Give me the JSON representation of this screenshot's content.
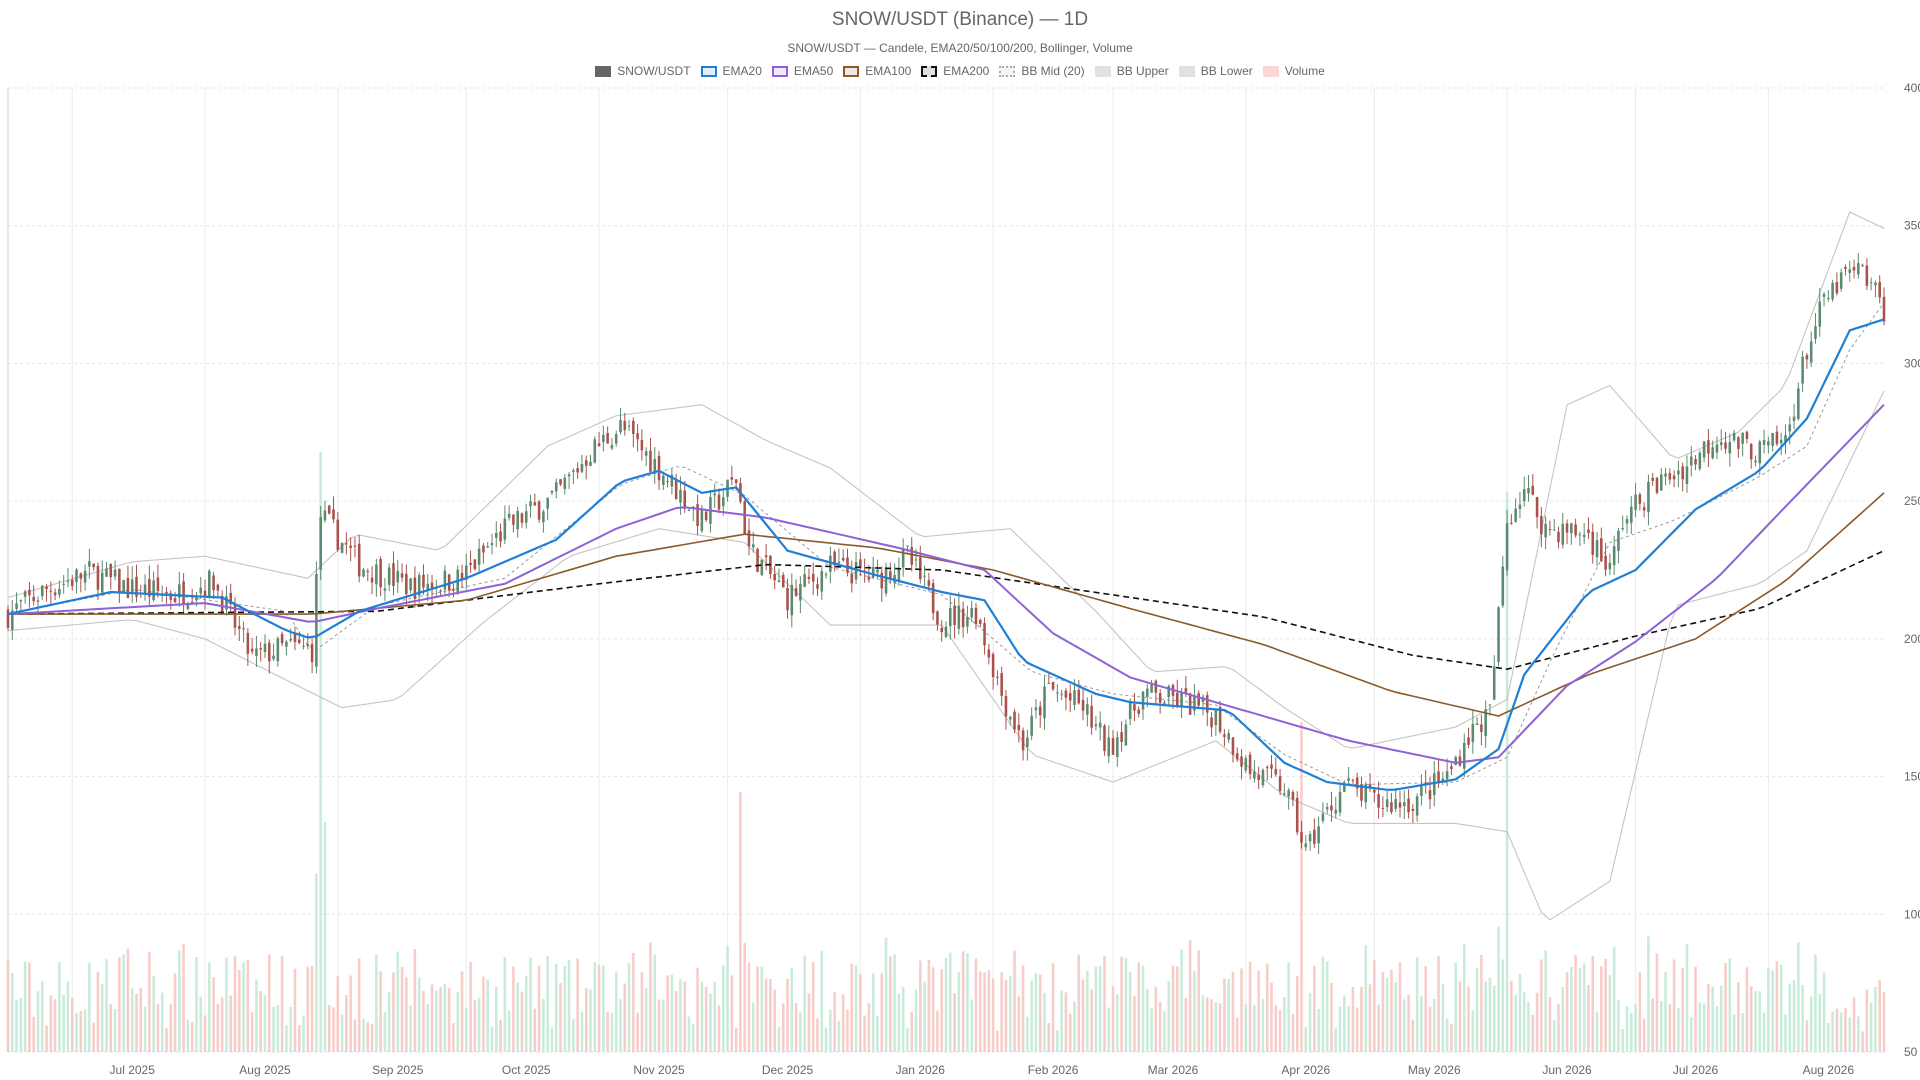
{
  "chart_data": {
    "type": "candlestick",
    "title": "SNOW/USDT (Binance) — 1D",
    "subtitle": "SNOW/USDT — Candele, EMA20/50/100/200, Bollinger, Volume",
    "legend": [
      {
        "label": "SNOW/USDT",
        "color": "#666666",
        "style": "fill"
      },
      {
        "label": "EMA20",
        "color": "#1f7fd6",
        "style": "line"
      },
      {
        "label": "EMA50",
        "color": "#8e62d6",
        "style": "line"
      },
      {
        "label": "EMA100",
        "color": "#8a5a2b",
        "style": "line"
      },
      {
        "label": "EMA200",
        "color": "#111111",
        "style": "dashed"
      },
      {
        "label": "BB Mid (20)",
        "color": "#aaaaaa",
        "style": "dotted"
      },
      {
        "label": "BB Upper",
        "color": "#c8c8c8",
        "style": "fill"
      },
      {
        "label": "BB Lower",
        "color": "#c8c8c8",
        "style": "fill"
      },
      {
        "label": "Volume",
        "color": "#f4b6b0",
        "style": "fill"
      }
    ],
    "x_ticks": [
      "Jul 2025",
      "Aug 2025",
      "Sep 2025",
      "Oct 2025",
      "Nov 2025",
      "Dec 2025",
      "Jan 2026",
      "Feb 2026",
      "Mar 2026",
      "Apr 2026",
      "May 2026",
      "Jun 2026",
      "Jul 2026",
      "Aug 2026"
    ],
    "y_ticks": [
      50,
      100,
      150,
      200,
      250,
      300,
      350,
      400
    ],
    "ylim": [
      50,
      400
    ],
    "x_range": [
      "2025-06-16",
      "2026-08-28"
    ],
    "colors": {
      "up": "#5b8a6f",
      "down": "#a8524b",
      "vol_up": "#bfe8d3",
      "vol_down": "#f6c4bf"
    },
    "close_path": [
      [
        "2025-06-16",
        209
      ],
      [
        "2025-06-25",
        218
      ],
      [
        "2025-07-05",
        224
      ],
      [
        "2025-07-15",
        218
      ],
      [
        "2025-07-25",
        216
      ],
      [
        "2025-08-03",
        221
      ],
      [
        "2025-08-07",
        208
      ],
      [
        "2025-08-12",
        193
      ],
      [
        "2025-08-20",
        197
      ],
      [
        "2025-08-26",
        196
      ],
      [
        "2025-08-28",
        245
      ],
      [
        "2025-09-06",
        227
      ],
      [
        "2025-09-18",
        219
      ],
      [
        "2025-09-30",
        222
      ],
      [
        "2025-10-10",
        240
      ],
      [
        "2025-10-22",
        252
      ],
      [
        "2025-10-30",
        268
      ],
      [
        "2025-11-06",
        277
      ],
      [
        "2025-11-15",
        262
      ],
      [
        "2025-11-25",
        243
      ],
      [
        "2025-12-03",
        258
      ],
      [
        "2025-12-06",
        233
      ],
      [
        "2025-12-15",
        215
      ],
      [
        "2025-12-25",
        226
      ],
      [
        "2026-01-05",
        222
      ],
      [
        "2026-01-12",
        230
      ],
      [
        "2026-01-20",
        207
      ],
      [
        "2026-01-28",
        210
      ],
      [
        "2026-02-03",
        180
      ],
      [
        "2026-02-08",
        162
      ],
      [
        "2026-02-14",
        182
      ],
      [
        "2026-02-22",
        175
      ],
      [
        "2026-02-28",
        160
      ],
      [
        "2026-03-08",
        180
      ],
      [
        "2026-03-18",
        177
      ],
      [
        "2026-03-25",
        172
      ],
      [
        "2026-04-02",
        152
      ],
      [
        "2026-04-10",
        146
      ],
      [
        "2026-04-15",
        123
      ],
      [
        "2026-04-18",
        132
      ],
      [
        "2026-04-24",
        147
      ],
      [
        "2026-05-02",
        140
      ],
      [
        "2026-05-10",
        141
      ],
      [
        "2026-05-18",
        150
      ],
      [
        "2026-05-23",
        165
      ],
      [
        "2026-05-28",
        173
      ],
      [
        "2026-06-01",
        243
      ],
      [
        "2026-06-05",
        255
      ],
      [
        "2026-06-10",
        240
      ],
      [
        "2026-06-20",
        238
      ],
      [
        "2026-06-25",
        225
      ],
      [
        "2026-06-28",
        243
      ],
      [
        "2026-07-05",
        255
      ],
      [
        "2026-07-13",
        263
      ],
      [
        "2026-07-20",
        274
      ],
      [
        "2026-07-30",
        268
      ],
      [
        "2026-08-05",
        272
      ],
      [
        "2026-08-10",
        305
      ],
      [
        "2026-08-14",
        322
      ],
      [
        "2026-08-19",
        332
      ],
      [
        "2026-08-23",
        333
      ],
      [
        "2026-08-28",
        320
      ]
    ],
    "ema20": [
      [
        "2025-06-16",
        209
      ],
      [
        "2025-07-10",
        217
      ],
      [
        "2025-08-05",
        215
      ],
      [
        "2025-08-20",
        203
      ],
      [
        "2025-08-26",
        200
      ],
      [
        "2025-09-06",
        210
      ],
      [
        "2025-10-01",
        222
      ],
      [
        "2025-10-22",
        236
      ],
      [
        "2025-11-06",
        257
      ],
      [
        "2025-11-15",
        261
      ],
      [
        "2025-11-25",
        253
      ],
      [
        "2025-12-03",
        255
      ],
      [
        "2025-12-15",
        232
      ],
      [
        "2026-01-05",
        223
      ],
      [
        "2026-01-20",
        217
      ],
      [
        "2026-01-30",
        214
      ],
      [
        "2026-02-08",
        192
      ],
      [
        "2026-02-25",
        180
      ],
      [
        "2026-03-05",
        177
      ],
      [
        "2026-03-28",
        174
      ],
      [
        "2026-04-10",
        155
      ],
      [
        "2026-04-20",
        148
      ],
      [
        "2026-05-05",
        145
      ],
      [
        "2026-05-20",
        149
      ],
      [
        "2026-05-30",
        160
      ],
      [
        "2026-06-05",
        187
      ],
      [
        "2026-06-20",
        217
      ],
      [
        "2026-07-01",
        225
      ],
      [
        "2026-07-15",
        247
      ],
      [
        "2026-07-30",
        261
      ],
      [
        "2026-08-10",
        280
      ],
      [
        "2026-08-20",
        312
      ],
      [
        "2026-08-28",
        316
      ]
    ],
    "ema50": [
      [
        "2025-06-16",
        209
      ],
      [
        "2025-08-01",
        213
      ],
      [
        "2025-08-26",
        206
      ],
      [
        "2025-09-10",
        211
      ],
      [
        "2025-10-10",
        220
      ],
      [
        "2025-11-05",
        240
      ],
      [
        "2025-11-20",
        248
      ],
      [
        "2025-12-10",
        244
      ],
      [
        "2026-01-10",
        233
      ],
      [
        "2026-01-30",
        225
      ],
      [
        "2026-02-15",
        202
      ],
      [
        "2026-03-05",
        186
      ],
      [
        "2026-04-05",
        172
      ],
      [
        "2026-04-25",
        163
      ],
      [
        "2026-05-20",
        155
      ],
      [
        "2026-05-30",
        157
      ],
      [
        "2026-06-15",
        183
      ],
      [
        "2026-07-01",
        199
      ],
      [
        "2026-07-20",
        222
      ],
      [
        "2026-08-05",
        248
      ],
      [
        "2026-08-28",
        285
      ]
    ],
    "ema100": [
      [
        "2025-06-16",
        209
      ],
      [
        "2025-08-26",
        209
      ],
      [
        "2025-10-01",
        214
      ],
      [
        "2025-11-05",
        230
      ],
      [
        "2025-12-05",
        238
      ],
      [
        "2026-01-05",
        233
      ],
      [
        "2026-02-01",
        225
      ],
      [
        "2026-03-05",
        211
      ],
      [
        "2026-04-05",
        198
      ],
      [
        "2026-05-05",
        181
      ],
      [
        "2026-05-30",
        172
      ],
      [
        "2026-06-20",
        187
      ],
      [
        "2026-07-15",
        200
      ],
      [
        "2026-08-05",
        221
      ],
      [
        "2026-08-28",
        253
      ]
    ],
    "ema200": [
      [
        "2025-06-16",
        209
      ],
      [
        "2025-09-10",
        210
      ],
      [
        "2025-11-01",
        220
      ],
      [
        "2025-12-10",
        227
      ],
      [
        "2026-01-20",
        225
      ],
      [
        "2026-02-20",
        218
      ],
      [
        "2026-04-05",
        208
      ],
      [
        "2026-05-10",
        194
      ],
      [
        "2026-06-01",
        189
      ],
      [
        "2026-07-01",
        201
      ],
      [
        "2026-07-30",
        211
      ],
      [
        "2026-08-28",
        232
      ]
    ],
    "bb_mid": [
      [
        "2025-06-16",
        209
      ],
      [
        "2025-07-15",
        218
      ],
      [
        "2025-08-20",
        210
      ],
      [
        "2025-08-26",
        195
      ],
      [
        "2025-09-10",
        212
      ],
      [
        "2025-10-10",
        222
      ],
      [
        "2025-11-06",
        256
      ],
      [
        "2025-11-20",
        263
      ],
      [
        "2025-12-05",
        252
      ],
      [
        "2025-12-25",
        226
      ],
      [
        "2026-01-20",
        216
      ],
      [
        "2026-02-10",
        188
      ],
      [
        "2026-03-01",
        180
      ],
      [
        "2026-03-25",
        176
      ],
      [
        "2026-04-10",
        158
      ],
      [
        "2026-04-25",
        147
      ],
      [
        "2026-05-20",
        148
      ],
      [
        "2026-06-01",
        157
      ],
      [
        "2026-06-12",
        195
      ],
      [
        "2026-06-25",
        235
      ],
      [
        "2026-07-10",
        243
      ],
      [
        "2026-07-30",
        259
      ],
      [
        "2026-08-10",
        270
      ],
      [
        "2026-08-20",
        305
      ],
      [
        "2026-08-28",
        322
      ]
    ],
    "bb_upper": [
      [
        "2025-06-16",
        215
      ],
      [
        "2025-07-15",
        228
      ],
      [
        "2025-08-01",
        230
      ],
      [
        "2025-08-25",
        222
      ],
      [
        "2025-09-05",
        238
      ],
      [
        "2025-09-25",
        232
      ],
      [
        "2025-10-20",
        270
      ],
      [
        "2025-11-05",
        281
      ],
      [
        "2025-11-25",
        285
      ],
      [
        "2025-12-10",
        272
      ],
      [
        "2025-12-25",
        262
      ],
      [
        "2026-01-15",
        237
      ],
      [
        "2026-02-05",
        240
      ],
      [
        "2026-02-25",
        210
      ],
      [
        "2026-03-10",
        188
      ],
      [
        "2026-03-28",
        190
      ],
      [
        "2026-04-10",
        175
      ],
      [
        "2026-04-25",
        160
      ],
      [
        "2026-05-20",
        168
      ],
      [
        "2026-06-01",
        178
      ],
      [
        "2026-06-15",
        285
      ],
      [
        "2026-06-25",
        292
      ],
      [
        "2026-07-10",
        265
      ],
      [
        "2026-07-25",
        275
      ],
      [
        "2026-08-05",
        292
      ],
      [
        "2026-08-20",
        355
      ],
      [
        "2026-08-28",
        349
      ]
    ],
    "bb_lower": [
      [
        "2025-06-16",
        203
      ],
      [
        "2025-07-15",
        207
      ],
      [
        "2025-08-01",
        200
      ],
      [
        "2025-08-20",
        185
      ],
      [
        "2025-09-02",
        175
      ],
      [
        "2025-09-15",
        178
      ],
      [
        "2025-10-05",
        206
      ],
      [
        "2025-10-25",
        230
      ],
      [
        "2025-11-15",
        240
      ],
      [
        "2025-12-05",
        235
      ],
      [
        "2025-12-25",
        205
      ],
      [
        "2026-01-20",
        205
      ],
      [
        "2026-02-10",
        158
      ],
      [
        "2026-03-01",
        148
      ],
      [
        "2026-03-25",
        163
      ],
      [
        "2026-04-10",
        143
      ],
      [
        "2026-04-25",
        133
      ],
      [
        "2026-05-20",
        133
      ],
      [
        "2026-06-01",
        130
      ],
      [
        "2026-06-10",
        97
      ],
      [
        "2026-06-25",
        112
      ],
      [
        "2026-07-10",
        212
      ],
      [
        "2026-07-30",
        220
      ],
      [
        "2026-08-10",
        232
      ],
      [
        "2026-08-28",
        290
      ]
    ]
  }
}
